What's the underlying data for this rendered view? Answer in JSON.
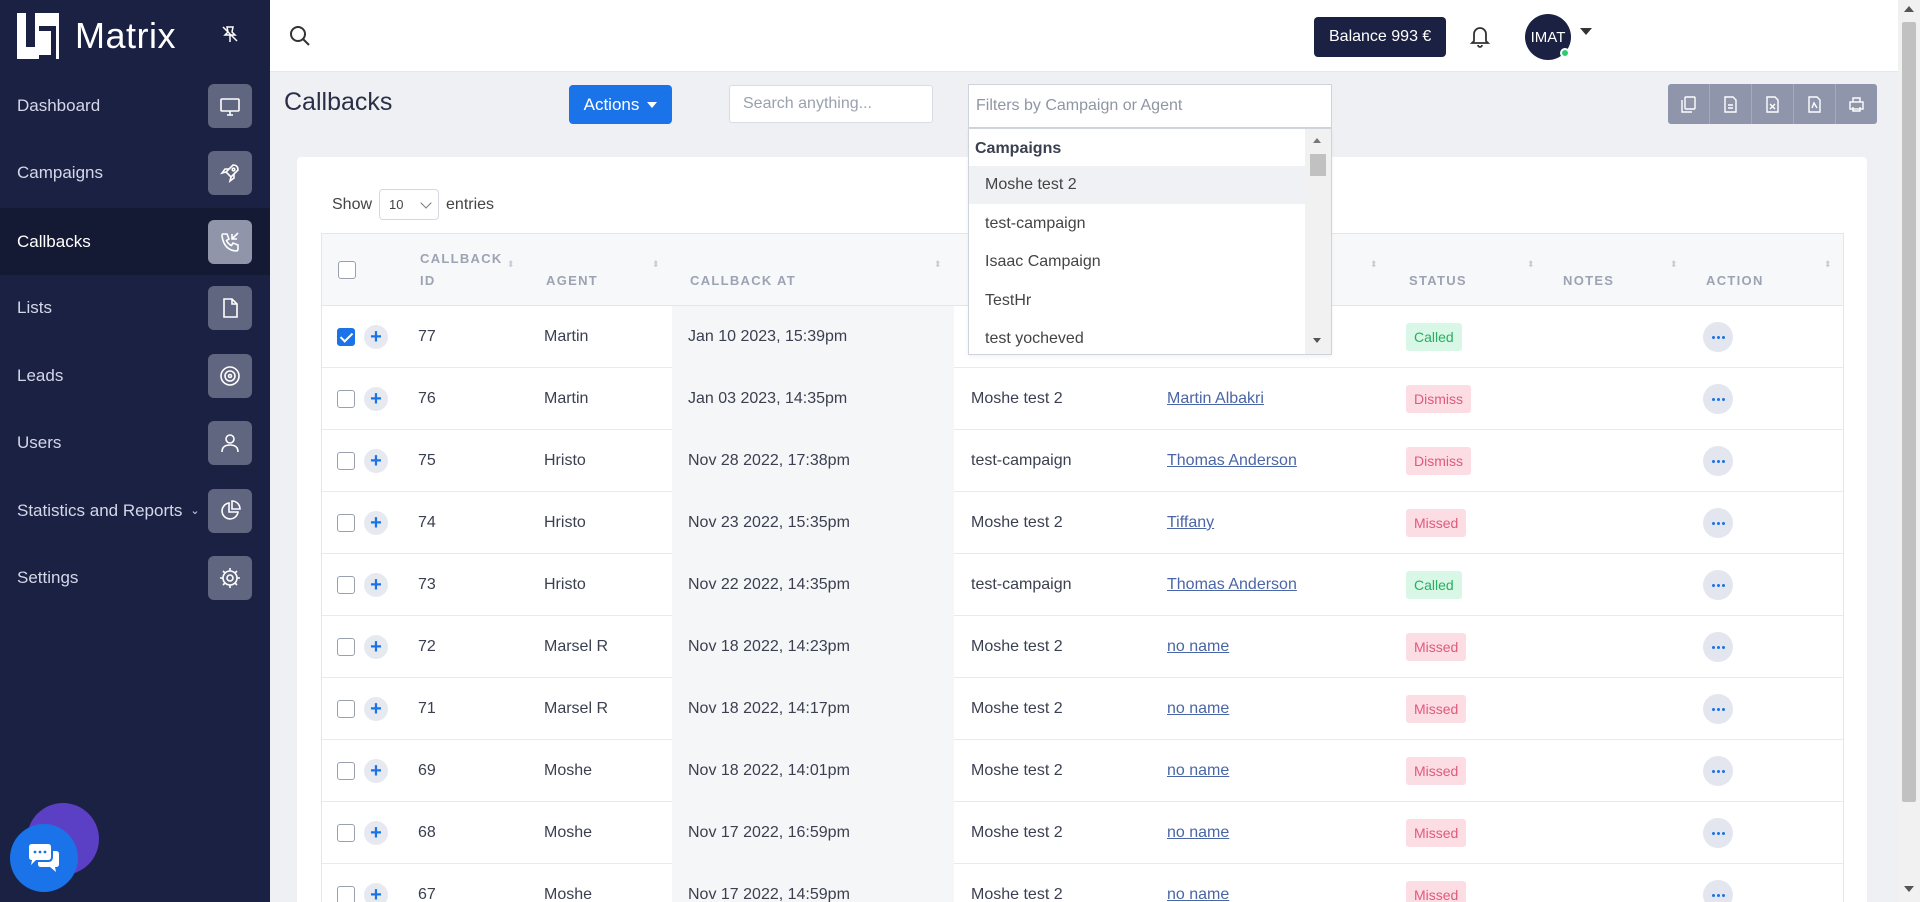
{
  "app": {
    "name": "Matrix"
  },
  "nav": [
    {
      "label": "Dashboard",
      "icon": "monitor-icon",
      "active": false
    },
    {
      "label": "Campaigns",
      "icon": "rocket-icon",
      "active": false
    },
    {
      "label": "Callbacks",
      "icon": "phone-callback-icon",
      "active": true
    },
    {
      "label": "Lists",
      "icon": "document-icon",
      "active": false
    },
    {
      "label": "Leads",
      "icon": "target-icon",
      "active": false
    },
    {
      "label": "Users",
      "icon": "user-icon",
      "active": false
    },
    {
      "label": "Statistics and Reports",
      "icon": "pie-chart-icon",
      "active": false,
      "has_submenu": true
    },
    {
      "label": "Settings",
      "icon": "gear-icon",
      "active": false
    }
  ],
  "topbar": {
    "balance": "Balance 993 €",
    "avatar": "IMAT"
  },
  "page": {
    "title": "Callbacks",
    "actions_label": "Actions",
    "search_placeholder": "Search anything...",
    "filter_placeholder": "Filters by Campaign or Agent"
  },
  "show_entries": {
    "prefix": "Show",
    "value": "10",
    "suffix": "entries"
  },
  "dropdown": {
    "group": "Campaigns",
    "items": [
      "Moshe test 2",
      "test-campaign",
      "Isaac Campaign",
      "TestHr",
      "test yocheved"
    ]
  },
  "table": {
    "headers": {
      "id_line1": "CALLBACK",
      "id_line2": "ID",
      "agent": "AGENT",
      "callback_at": "CALLBACK AT",
      "status": "STATUS",
      "notes": "NOTES",
      "action": "ACTION"
    },
    "rows": [
      {
        "id": "77",
        "agent": "Martin",
        "time": "Jan 10 2023, 15:39pm",
        "campaign": "",
        "lead": "",
        "status": "Called",
        "checked": true
      },
      {
        "id": "76",
        "agent": "Martin",
        "time": "Jan 03 2023, 14:35pm",
        "campaign": "Moshe test 2",
        "lead": "Martin Albakri",
        "status": "Dismiss",
        "checked": false
      },
      {
        "id": "75",
        "agent": "Hristo",
        "time": "Nov 28 2022, 17:38pm",
        "campaign": "test-campaign",
        "lead": "Thomas Anderson",
        "status": "Dismiss",
        "checked": false
      },
      {
        "id": "74",
        "agent": "Hristo",
        "time": "Nov 23 2022, 15:35pm",
        "campaign": "Moshe test 2",
        "lead": "Tiffany",
        "status": "Missed",
        "checked": false
      },
      {
        "id": "73",
        "agent": "Hristo",
        "time": "Nov 22 2022, 14:35pm",
        "campaign": "test-campaign",
        "lead": "Thomas Anderson",
        "status": "Called",
        "checked": false
      },
      {
        "id": "72",
        "agent": "Marsel R",
        "time": "Nov 18 2022, 14:23pm",
        "campaign": "Moshe test 2",
        "lead": "no name",
        "status": "Missed",
        "checked": false
      },
      {
        "id": "71",
        "agent": "Marsel R",
        "time": "Nov 18 2022, 14:17pm",
        "campaign": "Moshe test 2",
        "lead": "no name",
        "status": "Missed",
        "checked": false
      },
      {
        "id": "69",
        "agent": "Moshe",
        "time": "Nov 18 2022, 14:01pm",
        "campaign": "Moshe test 2",
        "lead": "no name",
        "status": "Missed",
        "checked": false
      },
      {
        "id": "68",
        "agent": "Moshe",
        "time": "Nov 17 2022, 16:59pm",
        "campaign": "Moshe test 2",
        "lead": "no name",
        "status": "Missed",
        "checked": false
      },
      {
        "id": "67",
        "agent": "Moshe",
        "time": "Nov 17 2022, 14:59pm",
        "campaign": "Moshe test 2",
        "lead": "no name",
        "status": "Missed",
        "checked": false
      }
    ]
  },
  "colors": {
    "sidebar": "#1b2143",
    "primary": "#1a73e8",
    "called": "#27ae60",
    "missed": "#e05a7a"
  }
}
